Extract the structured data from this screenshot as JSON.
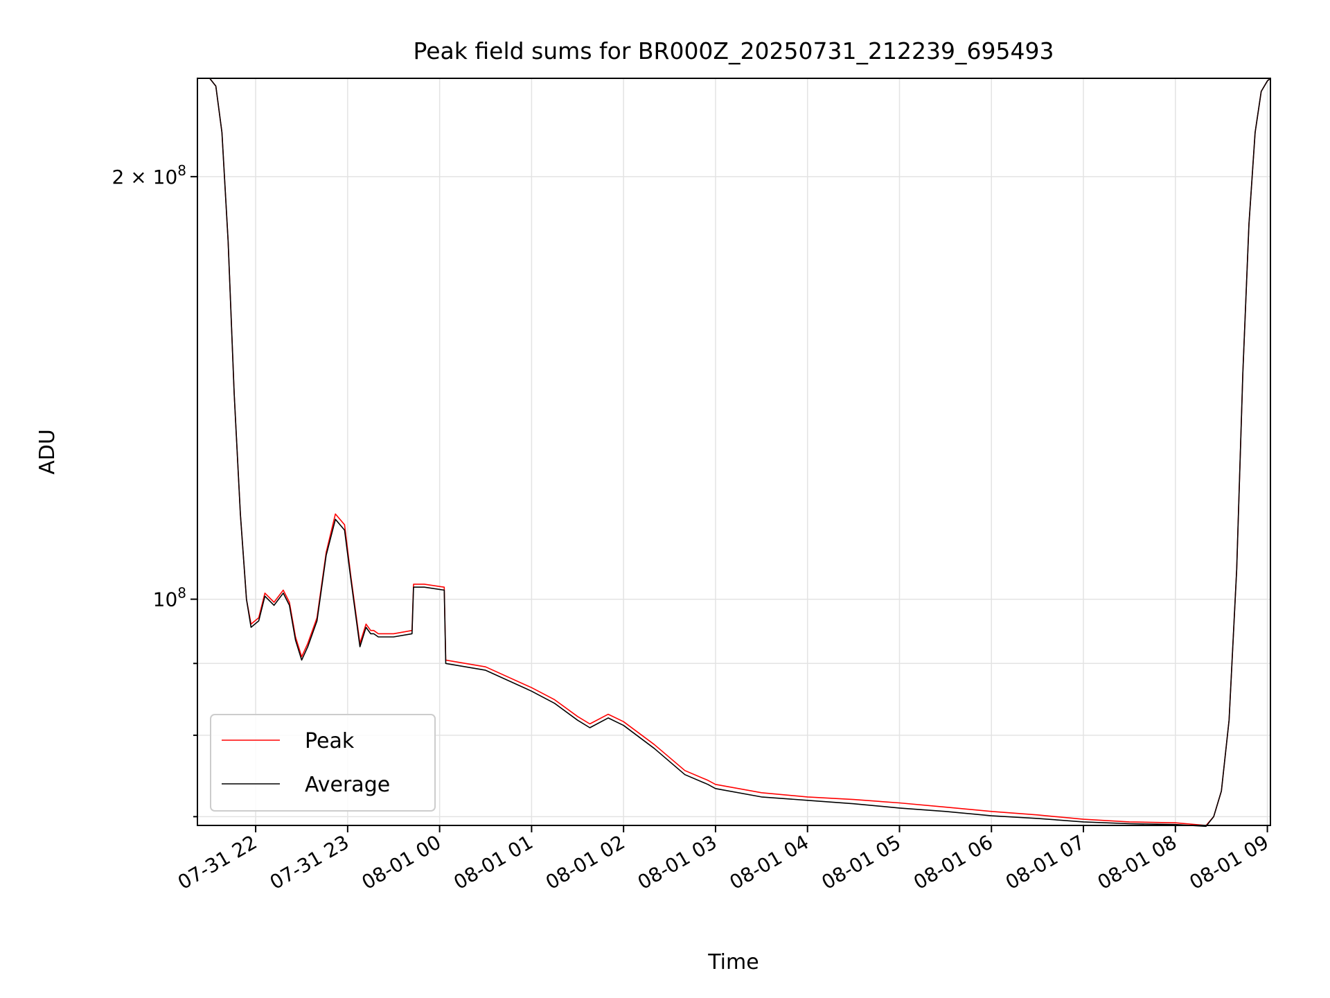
{
  "chart_data": {
    "type": "line",
    "title": "Peak field sums for BR000Z_20250731_212239_695493",
    "xlabel": "Time",
    "ylabel": "ADU",
    "yscale": "log",
    "grid": true,
    "legend_position": "lower-left",
    "x_range": [
      "2025-07-31T21:22",
      "2025-08-01T09:02"
    ],
    "ylim": [
      69000000,
      235000000
    ],
    "x_ticks": [
      {
        "t": "2025-07-31T22:00",
        "label": "07-31 22"
      },
      {
        "t": "2025-07-31T23:00",
        "label": "07-31 23"
      },
      {
        "t": "2025-08-01T00:00",
        "label": "08-01 00"
      },
      {
        "t": "2025-08-01T01:00",
        "label": "08-01 01"
      },
      {
        "t": "2025-08-01T02:00",
        "label": "08-01 02"
      },
      {
        "t": "2025-08-01T03:00",
        "label": "08-01 03"
      },
      {
        "t": "2025-08-01T04:00",
        "label": "08-01 04"
      },
      {
        "t": "2025-08-01T05:00",
        "label": "08-01 05"
      },
      {
        "t": "2025-08-01T06:00",
        "label": "08-01 06"
      },
      {
        "t": "2025-08-01T07:00",
        "label": "08-01 07"
      },
      {
        "t": "2025-08-01T08:00",
        "label": "08-01 08"
      },
      {
        "t": "2025-08-01T09:00",
        "label": "08-01 09"
      }
    ],
    "y_major_ticks": [
      {
        "value": 100000000,
        "base": "10",
        "exp": "8"
      },
      {
        "value": 200000000,
        "base": "2 × 10",
        "exp": "8"
      }
    ],
    "y_minor_ticks": [
      70000000,
      80000000,
      90000000
    ],
    "series": [
      {
        "name": "Peak",
        "color": "#ff0000",
        "x": [
          "2025-07-31T21:22",
          "2025-07-31T21:30",
          "2025-07-31T21:34",
          "2025-07-31T21:38",
          "2025-07-31T21:42",
          "2025-07-31T21:46",
          "2025-07-31T21:50",
          "2025-07-31T21:54",
          "2025-07-31T21:57",
          "2025-07-31T22:02",
          "2025-07-31T22:06",
          "2025-07-31T22:12",
          "2025-07-31T22:18",
          "2025-07-31T22:22",
          "2025-07-31T22:26",
          "2025-07-31T22:30",
          "2025-07-31T22:34",
          "2025-07-31T22:40",
          "2025-07-31T22:46",
          "2025-07-31T22:52",
          "2025-07-31T22:58",
          "2025-07-31T23:02",
          "2025-07-31T23:08",
          "2025-07-31T23:12",
          "2025-07-31T23:15",
          "2025-07-31T23:17",
          "2025-07-31T23:20",
          "2025-07-31T23:30",
          "2025-07-31T23:42",
          "2025-07-31T23:43",
          "2025-07-31T23:50",
          "2025-08-01T00:03",
          "2025-08-01T00:04",
          "2025-08-01T00:30",
          "2025-08-01T01:00",
          "2025-08-01T01:15",
          "2025-08-01T01:30",
          "2025-08-01T01:38",
          "2025-08-01T01:50",
          "2025-08-01T02:00",
          "2025-08-01T02:20",
          "2025-08-01T02:40",
          "2025-08-01T02:55",
          "2025-08-01T03:00",
          "2025-08-01T03:30",
          "2025-08-01T04:00",
          "2025-08-01T04:30",
          "2025-08-01T05:00",
          "2025-08-01T05:30",
          "2025-08-01T06:00",
          "2025-08-01T06:30",
          "2025-08-01T07:00",
          "2025-08-01T07:30",
          "2025-08-01T08:00",
          "2025-08-01T08:20",
          "2025-08-01T08:25",
          "2025-08-01T08:30",
          "2025-08-01T08:35",
          "2025-08-01T08:40",
          "2025-08-01T08:44",
          "2025-08-01T08:48",
          "2025-08-01T08:52",
          "2025-08-01T08:56",
          "2025-08-01T09:00",
          "2025-08-01T09:02"
        ],
        "values": [
          235000000,
          235000000,
          232000000,
          215000000,
          180000000,
          140000000,
          115000000,
          100000000,
          96000000,
          97000000,
          101000000,
          99500000,
          101500000,
          99500000,
          94000000,
          91000000,
          93000000,
          97000000,
          108000000,
          115000000,
          113000000,
          104000000,
          93000000,
          96000000,
          95000000,
          95000000,
          94500000,
          94500000,
          95000000,
          102500000,
          102500000,
          102000000,
          90500000,
          89500000,
          86500000,
          84800000,
          82500000,
          81500000,
          82800000,
          81800000,
          78800000,
          75500000,
          74300000,
          73800000,
          72800000,
          72300000,
          72000000,
          71600000,
          71100000,
          70600000,
          70200000,
          69700000,
          69400000,
          69300000,
          69000000,
          70000000,
          73000000,
          82000000,
          105000000,
          145000000,
          185000000,
          215000000,
          230000000,
          234000000,
          235000000
        ]
      },
      {
        "name": "Average",
        "color": "#000000",
        "x": [
          "2025-07-31T21:22",
          "2025-07-31T21:30",
          "2025-07-31T21:34",
          "2025-07-31T21:38",
          "2025-07-31T21:42",
          "2025-07-31T21:46",
          "2025-07-31T21:50",
          "2025-07-31T21:54",
          "2025-07-31T21:57",
          "2025-07-31T22:02",
          "2025-07-31T22:06",
          "2025-07-31T22:12",
          "2025-07-31T22:18",
          "2025-07-31T22:22",
          "2025-07-31T22:26",
          "2025-07-31T22:30",
          "2025-07-31T22:34",
          "2025-07-31T22:40",
          "2025-07-31T22:46",
          "2025-07-31T22:52",
          "2025-07-31T22:58",
          "2025-07-31T23:02",
          "2025-07-31T23:08",
          "2025-07-31T23:12",
          "2025-07-31T23:15",
          "2025-07-31T23:17",
          "2025-07-31T23:20",
          "2025-07-31T23:30",
          "2025-07-31T23:42",
          "2025-07-31T23:43",
          "2025-07-31T23:50",
          "2025-08-01T00:03",
          "2025-08-01T00:04",
          "2025-08-01T00:30",
          "2025-08-01T01:00",
          "2025-08-01T01:15",
          "2025-08-01T01:30",
          "2025-08-01T01:38",
          "2025-08-01T01:50",
          "2025-08-01T02:00",
          "2025-08-01T02:20",
          "2025-08-01T02:40",
          "2025-08-01T02:55",
          "2025-08-01T03:00",
          "2025-08-01T03:30",
          "2025-08-01T04:00",
          "2025-08-01T04:30",
          "2025-08-01T05:00",
          "2025-08-01T05:30",
          "2025-08-01T06:00",
          "2025-08-01T06:30",
          "2025-08-01T07:00",
          "2025-08-01T07:30",
          "2025-08-01T08:00",
          "2025-08-01T08:20",
          "2025-08-01T08:25",
          "2025-08-01T08:30",
          "2025-08-01T08:35",
          "2025-08-01T08:40",
          "2025-08-01T08:44",
          "2025-08-01T08:48",
          "2025-08-01T08:52",
          "2025-08-01T08:56",
          "2025-08-01T09:00",
          "2025-08-01T09:02"
        ],
        "values": [
          235000000,
          235000000,
          232000000,
          215000000,
          180000000,
          140000000,
          115000000,
          100000000,
          95500000,
          96500000,
          100500000,
          99000000,
          101000000,
          99000000,
          93500000,
          90500000,
          92500000,
          96500000,
          107500000,
          114000000,
          112000000,
          103500000,
          92500000,
          95500000,
          94500000,
          94500000,
          94000000,
          94000000,
          94500000,
          102000000,
          102000000,
          101500000,
          90000000,
          89000000,
          86000000,
          84300000,
          82000000,
          81000000,
          82300000,
          81300000,
          78300000,
          75000000,
          73800000,
          73300000,
          72300000,
          71900000,
          71500000,
          71000000,
          70600000,
          70100000,
          69800000,
          69400000,
          69200000,
          69100000,
          68900000,
          70000000,
          73000000,
          82000000,
          105000000,
          145000000,
          185000000,
          215000000,
          230000000,
          234000000,
          235000000
        ]
      }
    ]
  }
}
